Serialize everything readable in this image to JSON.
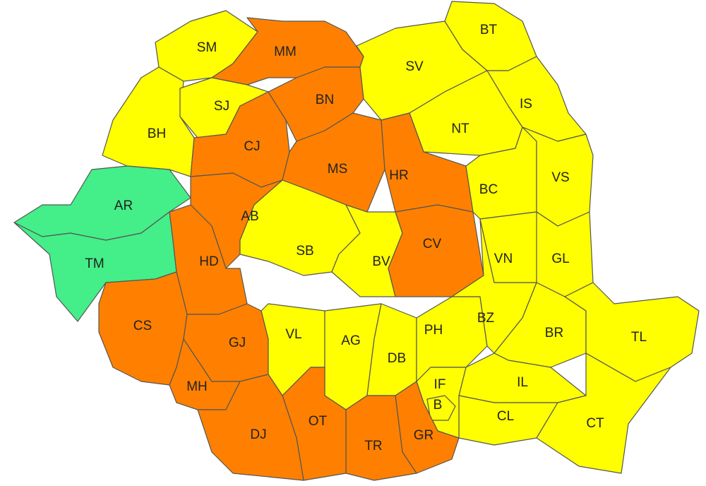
{
  "counties": [
    {
      "label": "SM",
      "color": "#ffff00"
    },
    {
      "label": "MM",
      "color": "#ff8000"
    },
    {
      "label": "BH",
      "color": "#ffff00"
    },
    {
      "label": "SJ",
      "color": "#ffff00"
    },
    {
      "label": "CJ",
      "color": "#ff8000"
    },
    {
      "label": "BN",
      "color": "#ff8000"
    },
    {
      "label": "MS",
      "color": "#ff8000"
    },
    {
      "label": "SV",
      "color": "#ffff00"
    },
    {
      "label": "BT",
      "color": "#ffff00"
    },
    {
      "label": "NT",
      "color": "#ffff00"
    },
    {
      "label": "IS",
      "color": "#ffff00"
    },
    {
      "label": "HR",
      "color": "#ff8000"
    },
    {
      "label": "BC",
      "color": "#ffff00"
    },
    {
      "label": "VS",
      "color": "#ffff00"
    },
    {
      "label": "AR",
      "color": "#44ee88"
    },
    {
      "label": "TM",
      "color": "#44ee88"
    },
    {
      "label": "AB",
      "color": "#ff8000"
    },
    {
      "label": "HD",
      "color": "#ff8000"
    },
    {
      "label": "CS",
      "color": "#ff8000"
    },
    {
      "label": "SB",
      "color": "#ffff00"
    },
    {
      "label": "BV",
      "color": "#ffff00"
    },
    {
      "label": "CV",
      "color": "#ff8000"
    },
    {
      "label": "GJ",
      "color": "#ff8000"
    },
    {
      "label": "MH",
      "color": "#ff8000"
    },
    {
      "label": "VL",
      "color": "#ffff00"
    },
    {
      "label": "AG",
      "color": "#ffff00"
    },
    {
      "label": "DB",
      "color": "#ffff00"
    },
    {
      "label": "PH",
      "color": "#ffff00"
    },
    {
      "label": "BZ",
      "color": "#ffff00"
    },
    {
      "label": "VN",
      "color": "#ffff00"
    },
    {
      "label": "GL",
      "color": "#ffff00"
    },
    {
      "label": "BR",
      "color": "#ffff00"
    },
    {
      "label": "TL",
      "color": "#ffff00"
    },
    {
      "label": "IL",
      "color": "#ffff00"
    },
    {
      "label": "CL",
      "color": "#ffff00"
    },
    {
      "label": "CT",
      "color": "#ffff00"
    },
    {
      "label": "IF",
      "color": "#ffff00"
    },
    {
      "label": "B",
      "color": "#ffff00"
    },
    {
      "label": "GR",
      "color": "#ff8000"
    },
    {
      "label": "TR",
      "color": "#ff8000"
    },
    {
      "label": "OT",
      "color": "#ff8000"
    },
    {
      "label": "DJ",
      "color": "#ff8000"
    }
  ]
}
